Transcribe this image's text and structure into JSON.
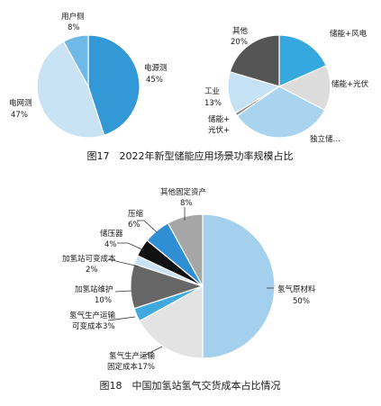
{
  "chart_data": [
    {
      "type": "pie",
      "title": "",
      "slices": [
        {
          "name": "电源侧",
          "value": 45,
          "display": "45%",
          "color": "#3399d6"
        },
        {
          "name": "电网侧",
          "value": 47,
          "display": "47%",
          "color": "#c9e3f5"
        },
        {
          "name": "用户侧",
          "value": 8,
          "display": "8%",
          "color": "#6eb9e6"
        }
      ]
    },
    {
      "type": "pie",
      "title": "",
      "slices": [
        {
          "name": "储能+风电",
          "value": 18,
          "display": "",
          "color": "#35a9df"
        },
        {
          "name": "储能+光伏",
          "value": 14,
          "display": "",
          "color": "#dcdcdc"
        },
        {
          "name": "独立储…",
          "value": 32,
          "display": "",
          "color": "#a9d3ee"
        },
        {
          "name": "储能+光伏+",
          "value": 1,
          "display": "",
          "color": "#8c8c8c"
        },
        {
          "name": "工业",
          "value": 13,
          "display": "13%",
          "color": "#c5e1f4"
        },
        {
          "name": "其他",
          "value": 20,
          "display": "20%",
          "color": "#555555"
        }
      ]
    },
    {
      "type": "pie",
      "title": "",
      "slices": [
        {
          "name": "氢气原材料",
          "value": 50,
          "display": "50%",
          "color": "#a4d0ee"
        },
        {
          "name": "氢气生产运输固定成本",
          "value": 17,
          "display": "17%",
          "color": "#e3e3e3"
        },
        {
          "name": "氢气生产运输可变成本",
          "value": 3,
          "display": "3%",
          "color": "#3fa9e0"
        },
        {
          "name": "加氢站维护",
          "value": 10,
          "display": "10%",
          "color": "#666666"
        },
        {
          "name": "加氢站可变成本",
          "value": 2,
          "display": "2%",
          "color": "#c9e3f5"
        },
        {
          "name": "储压器",
          "value": 4,
          "display": "4%",
          "color": "#111111"
        },
        {
          "name": "压缩",
          "value": 6,
          "display": "6%",
          "color": "#2f8fd4"
        },
        {
          "name": "其他固定资产",
          "value": 8,
          "display": "8%",
          "color": "#a6a6a6"
        }
      ]
    }
  ],
  "labels": {
    "p1_user": "用户侧",
    "p1_user_pct": "8%",
    "p1_source": "电源测",
    "p1_source_pct": "45%",
    "p1_grid": "电网测",
    "p1_grid_pct": "47%",
    "p2_other": "其他",
    "p2_other_pct": "20%",
    "p2_wind": "储能+风电",
    "p2_pv": "储能+光伏",
    "p2_industry": "工业",
    "p2_industry_pct": "13%",
    "p2_pvplus_1": "储能+",
    "p2_pvplus_2": "光伏+",
    "p2_indep": "独立储…",
    "p3_raw": "氢气原材料",
    "p3_raw_pct": "50%",
    "p3_fixed_1": "氢气生产运输",
    "p3_fixed_2": "固定成本17%",
    "p3_var_1": "氢气生产运输",
    "p3_var_2": "可变成本3%",
    "p3_maint": "加氢站维护",
    "p3_maint_pct": "10%",
    "p3_stvar": "加氢站可变成本",
    "p3_stvar_pct": "2%",
    "p3_press": "储压器",
    "p3_press_pct": "4%",
    "p3_comp": "压缩",
    "p3_comp_pct": "6%",
    "p3_otherfa": "其他固定资产",
    "p3_otherfa_pct": "8%"
  },
  "captions": {
    "fig17": "图17　2022年新型储能应用场景功率规模占比",
    "fig18": "图18　中国加氢站氢气交货成本占比情况"
  }
}
